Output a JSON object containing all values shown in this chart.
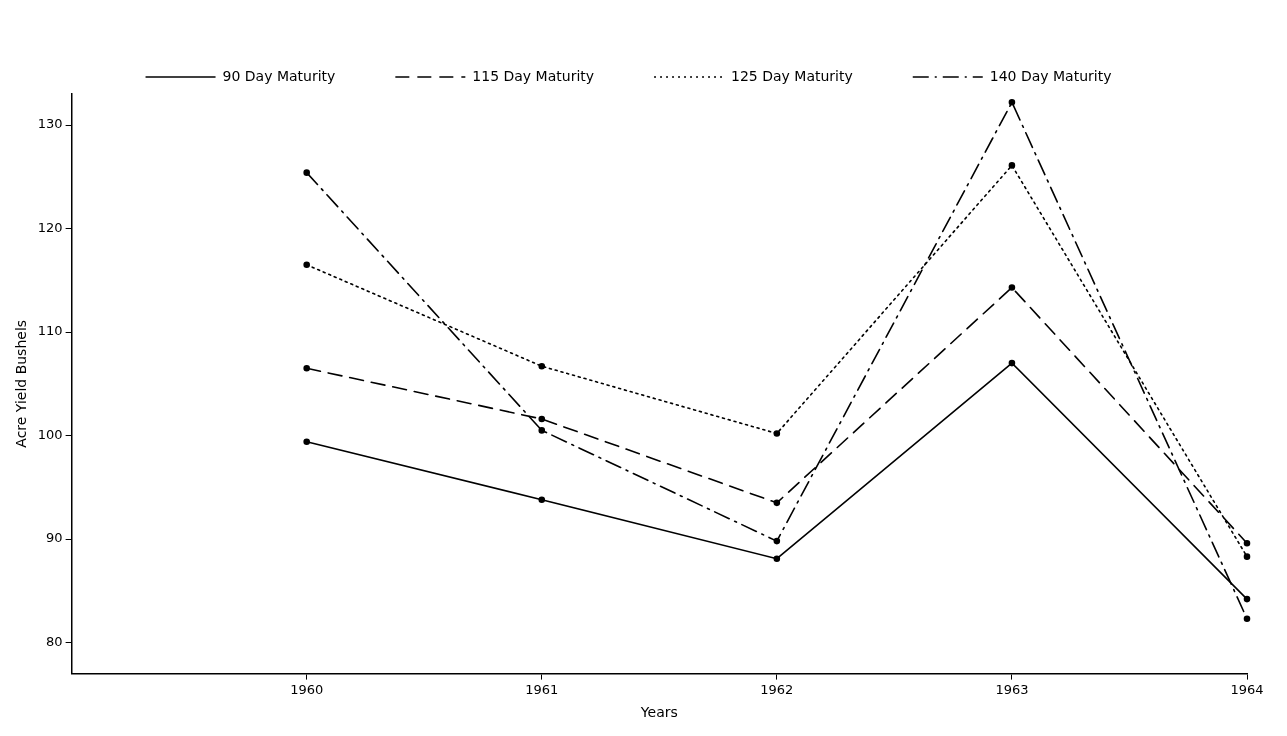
{
  "chart_data": {
    "type": "line",
    "xlabel": "Years",
    "ylabel": "Acre Yield Bushels",
    "x": [
      1960,
      1961,
      1962,
      1963,
      1964
    ],
    "xlim": [
      1959,
      1964
    ],
    "xticks": [
      1960,
      1961,
      1962,
      1963,
      1964
    ],
    "ylim": [
      77,
      133
    ],
    "yticks": [
      80,
      90,
      100,
      110,
      120,
      130
    ],
    "grid": false,
    "legend": "top",
    "marker": "circle",
    "series": [
      {
        "name": "90 Day Maturity",
        "color": "#000000",
        "line_style": "solid",
        "values": [
          99.4,
          93.8,
          88.1,
          107.0,
          84.2
        ]
      },
      {
        "name": "115 Day Maturity",
        "color": "#000000",
        "line_style": "dashed",
        "values": [
          106.5,
          101.6,
          93.5,
          114.3,
          89.6
        ]
      },
      {
        "name": "125 Day Maturity",
        "color": "#000000",
        "line_style": "dotted",
        "values": [
          116.5,
          106.7,
          100.2,
          126.1,
          88.3
        ]
      },
      {
        "name": "140 Day Maturity",
        "color": "#000000",
        "line_style": "dashdot",
        "values": [
          125.4,
          100.5,
          89.8,
          132.2,
          82.3
        ]
      }
    ]
  }
}
